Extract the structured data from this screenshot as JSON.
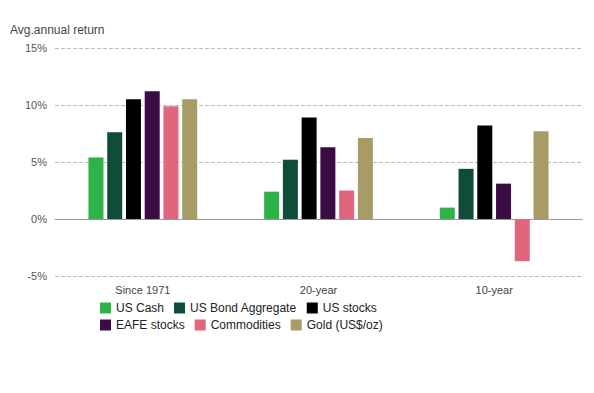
{
  "chart_data": {
    "type": "bar",
    "y_label": "Avg.annual return",
    "categories": [
      "Since 1971",
      "20-year",
      "10-year"
    ],
    "series": [
      {
        "name": "US Cash",
        "color": "#2db34a",
        "values": [
          5.4,
          2.4,
          1.0
        ]
      },
      {
        "name": "US Bond Aggregate",
        "color": "#0f4d3a",
        "values": [
          7.6,
          5.2,
          4.4
        ]
      },
      {
        "name": "US stocks",
        "color": "#000000",
        "values": [
          10.5,
          8.9,
          8.2
        ]
      },
      {
        "name": "EAFE stocks",
        "color": "#3a0b45",
        "values": [
          11.2,
          6.3,
          3.1
        ]
      },
      {
        "name": "Commodities",
        "color": "#e0677b",
        "values": [
          9.9,
          2.5,
          -3.7
        ]
      },
      {
        "name": "Gold (US$/oz)",
        "color": "#a79c66",
        "values": [
          10.5,
          7.1,
          7.7
        ]
      }
    ],
    "ylim": [
      -5,
      15
    ],
    "yticks": [
      {
        "value": -5,
        "label": "-5%"
      },
      {
        "value": 0,
        "label": "0%"
      },
      {
        "value": 5,
        "label": "5%"
      },
      {
        "value": 10,
        "label": "10%"
      },
      {
        "value": 15,
        "label": "15%"
      }
    ],
    "grid": true,
    "legend": "bottom"
  }
}
